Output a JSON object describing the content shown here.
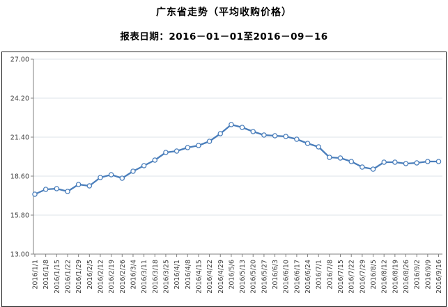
{
  "page": {
    "title": "广东省走势（平均收购价格）",
    "subtitle": "报表日期：2016－01－01至2016－09－16"
  },
  "chart_data": {
    "type": "line",
    "title": "广东省走势（平均收购价格）",
    "subtitle": "报表日期：2016－01－01至2016－09－16",
    "categories": [
      "2016/1/1",
      "2016/1/8",
      "2016/1/15",
      "2016/1/22",
      "2016/1/29",
      "2016/2/5",
      "2016/2/12",
      "2016/2/19",
      "2016/2/26",
      "2016/3/4",
      "2016/3/11",
      "2016/3/18",
      "2016/3/25",
      "2016/4/1",
      "2016/4/8",
      "2016/4/15",
      "2016/4/22",
      "2016/4/29",
      "2016/5/6",
      "2016/5/13",
      "2016/5/20",
      "2016/5/27",
      "2016/6/3",
      "2016/6/10",
      "2016/6/17",
      "2016/6/24",
      "2016/7/1",
      "2016/7/8",
      "2016/7/15",
      "2016/7/22",
      "2016/7/29",
      "2016/8/5",
      "2016/8/12",
      "2016/8/19",
      "2016/8/26",
      "2016/9/2",
      "2016/9/9",
      "2016/9/16"
    ],
    "values": [
      17.3,
      17.65,
      17.7,
      17.5,
      18.0,
      17.9,
      18.5,
      18.7,
      18.45,
      18.95,
      19.35,
      19.75,
      20.3,
      20.4,
      20.65,
      20.8,
      21.1,
      21.65,
      22.3,
      22.1,
      21.8,
      21.55,
      21.5,
      21.45,
      21.25,
      20.95,
      20.7,
      19.95,
      19.9,
      19.65,
      19.25,
      19.1,
      19.6,
      19.6,
      19.5,
      19.55,
      19.65,
      19.65
    ],
    "xlabel": "",
    "ylabel": "",
    "ylim": [
      13.0,
      27.0
    ],
    "yticks": [
      13.0,
      15.8,
      18.6,
      21.4,
      24.2,
      27.0
    ],
    "ytick_labels": [
      "13.00",
      "15.80",
      "18.60",
      "21.40",
      "24.20",
      "27.00"
    ],
    "grid": true,
    "legend": "none",
    "line_color": "#4a7ebb",
    "marker_fill": "#ffffff",
    "grid_color": "#dce3ea",
    "axis_color": "#808080",
    "tick_label_color": "#404040"
  }
}
